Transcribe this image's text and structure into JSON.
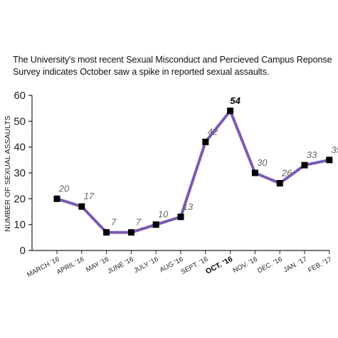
{
  "chart_data": {
    "type": "line",
    "subtitle": "The University's most recent Sexual Misconduct and Percieved Campus Reponse Survey indicates October saw a spike in reported sexual assaults.",
    "ylabel": "NUMBER OF SEXUAL ASSAULTS",
    "xlabel": "",
    "categories": [
      "MARCH '16",
      "APRIL '16",
      "MAY '16",
      "JUNE '16",
      "JULY '16",
      "AUG '16",
      "SEPT. '16",
      "OCT. '16",
      "NOV. '16",
      "DEC. '16",
      "JAN. '17",
      "FEB. '17"
    ],
    "values": [
      20,
      17,
      7,
      7,
      10,
      13,
      42,
      54,
      30,
      26,
      33,
      35
    ],
    "highlight_category": "OCT. '16",
    "ylim": [
      0,
      60
    ],
    "yticks": [
      0,
      10,
      20,
      30,
      40,
      50,
      60
    ],
    "grid": false,
    "colors": {
      "line": "#7b5bb0",
      "marker": "#000000"
    }
  }
}
